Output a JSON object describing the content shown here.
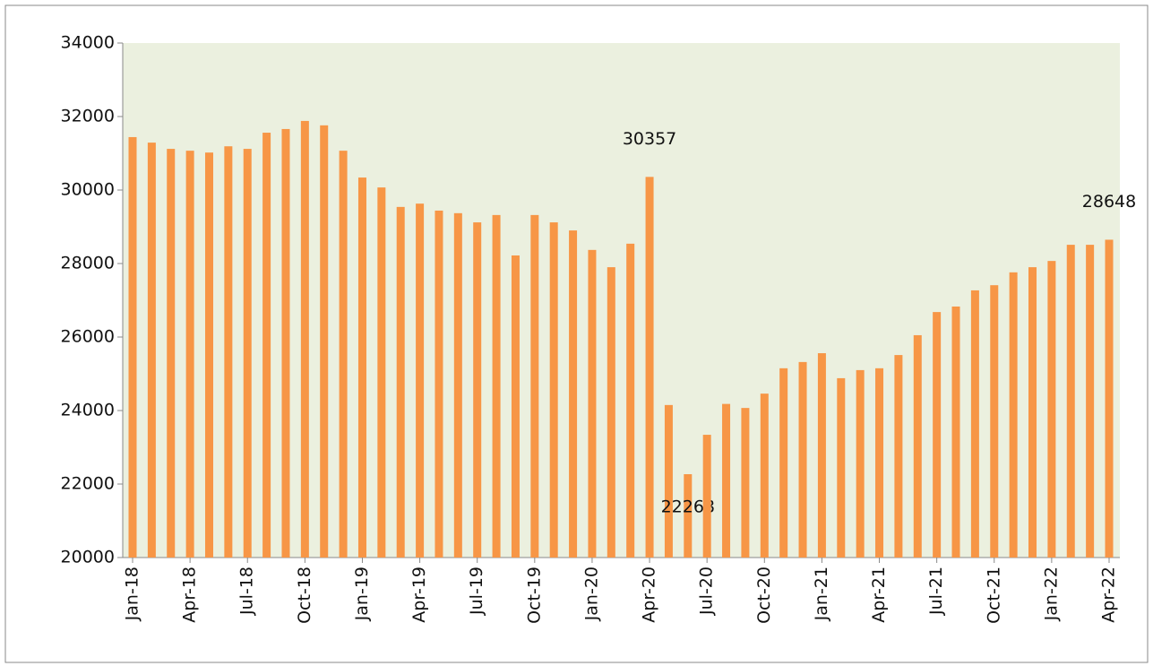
{
  "chart_data": {
    "type": "bar",
    "categories": [
      "Jan-18",
      null,
      null,
      "Apr-18",
      null,
      null,
      "Jul-18",
      null,
      null,
      "Oct-18",
      null,
      null,
      "Jan-19",
      null,
      null,
      "Apr-19",
      null,
      null,
      "Jul-19",
      null,
      null,
      "Oct-19",
      null,
      null,
      "Jan-20",
      null,
      null,
      "Apr-20",
      null,
      null,
      "Jul-20",
      null,
      null,
      "Oct-20",
      null,
      null,
      "Jan-21",
      null,
      null,
      "Apr-21",
      null,
      null,
      "Jul-21",
      null,
      null,
      "Oct-21",
      null,
      null,
      "Jan-22",
      null,
      null,
      "Apr-22"
    ],
    "values": [
      31440,
      31290,
      31120,
      31070,
      31020,
      31190,
      31120,
      31560,
      31660,
      31880,
      31760,
      31070,
      30340,
      30070,
      29540,
      29630,
      29440,
      29370,
      29120,
      29320,
      28220,
      29320,
      29120,
      28900,
      28370,
      27900,
      28540,
      30357,
      24150,
      22268,
      23340,
      24180,
      24070,
      24460,
      25150,
      25320,
      25560,
      24880,
      25100,
      25150,
      25510,
      26050,
      26680,
      26830,
      27270,
      27410,
      27760,
      27900,
      28070,
      28510,
      28510,
      28648
    ],
    "value_labels": [
      null,
      null,
      null,
      null,
      null,
      null,
      null,
      null,
      null,
      null,
      null,
      null,
      null,
      null,
      null,
      null,
      null,
      null,
      null,
      null,
      null,
      null,
      null,
      null,
      null,
      null,
      null,
      "30357",
      null,
      "22268",
      null,
      null,
      null,
      null,
      null,
      null,
      null,
      null,
      null,
      null,
      null,
      null,
      null,
      null,
      null,
      null,
      null,
      null,
      null,
      null,
      null,
      "28648"
    ],
    "color": "#f79646",
    "ylim": [
      20000,
      34000
    ],
    "yticks": [
      20000,
      22000,
      24000,
      26000,
      28000,
      30000,
      32000,
      34000
    ],
    "grid": false
  }
}
